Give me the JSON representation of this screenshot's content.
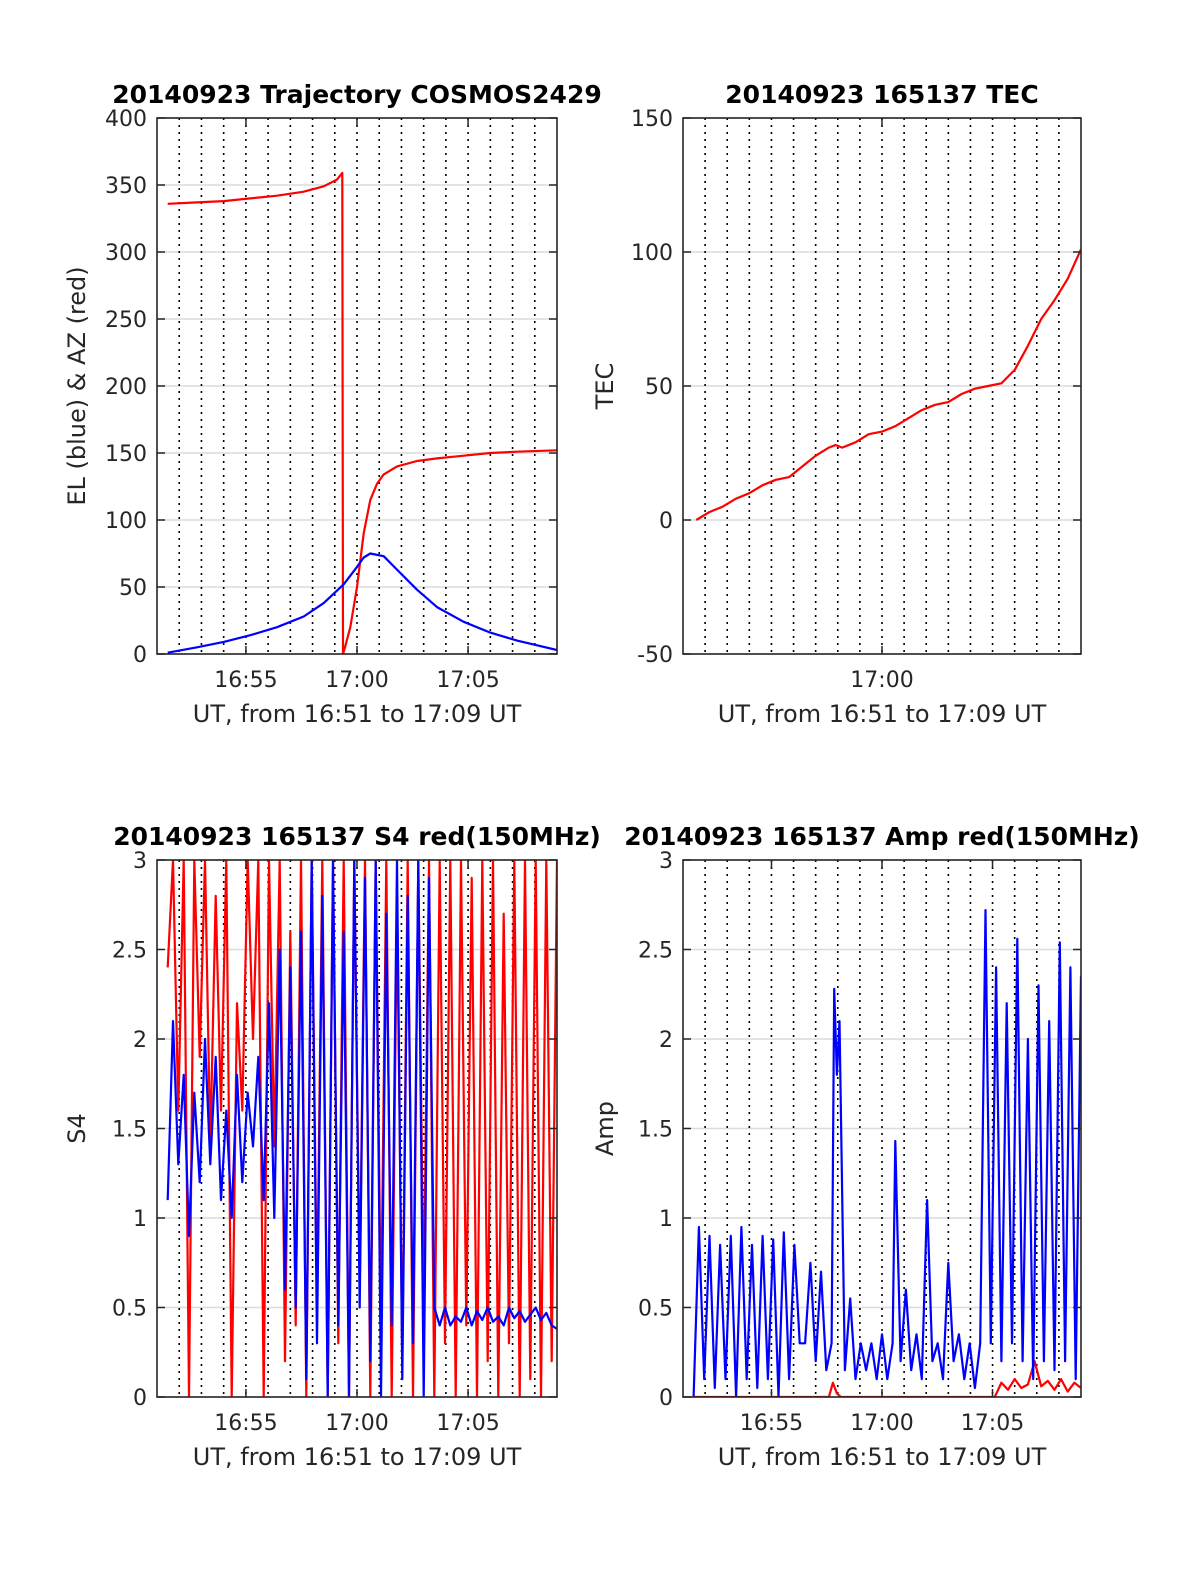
{
  "figure": {
    "background": "#ffffff",
    "grid_color": "#dcdcdc",
    "major_grid_color": "#000000",
    "series_colors": {
      "red": "#ff0000",
      "blue": "#0000ff"
    }
  },
  "chart_data": [
    {
      "id": "trajectory",
      "type": "line",
      "title": "20140923 Trajectory COSMOS2429",
      "xlabel": "UT, from 16:51 to 17:09 UT",
      "ylabel": "EL (blue) & AZ (red)",
      "xlim": [
        16.85,
        17.15
      ],
      "ylim": [
        0,
        400
      ],
      "yticks": [
        0,
        50,
        100,
        150,
        200,
        250,
        300,
        350,
        400
      ],
      "yticklabels": [
        "0",
        "50",
        "100",
        "150",
        "200",
        "250",
        "300",
        "350",
        "400"
      ],
      "xticks": [
        16.9167,
        17.0,
        17.0833
      ],
      "xticklabels": [
        "16:55",
        "17:00",
        "17:05"
      ],
      "minor_grid_step_min": 1,
      "grid": true,
      "series": [
        {
          "color": "#ff0000",
          "x": [
            16.858,
            16.88,
            16.9,
            16.92,
            16.94,
            16.96,
            16.975,
            16.985,
            16.989,
            16.9895,
            16.991,
            16.995,
            17.0,
            17.005,
            17.01,
            17.015,
            17.02,
            17.03,
            17.045,
            17.06,
            17.08,
            17.1,
            17.12,
            17.15
          ],
          "y": [
            336,
            337,
            338,
            340,
            342,
            345,
            349,
            354,
            359,
            0,
            5,
            20,
            50,
            90,
            115,
            127,
            134,
            140,
            144,
            146,
            148,
            150,
            151,
            152
          ]
        },
        {
          "color": "#0000ff",
          "x": [
            16.858,
            16.88,
            16.9,
            16.92,
            16.94,
            16.96,
            16.975,
            16.99,
            17.0,
            17.005,
            17.01,
            17.02,
            17.03,
            17.045,
            17.06,
            17.08,
            17.1,
            17.12,
            17.15
          ],
          "y": [
            1,
            5,
            9,
            14,
            20,
            28,
            38,
            52,
            65,
            72,
            75,
            73,
            63,
            48,
            35,
            24,
            16,
            10,
            3
          ]
        }
      ]
    },
    {
      "id": "tec",
      "type": "line",
      "title": "20140923 165137 TEC",
      "xlabel": "UT, from 16:51 to 17:09 UT",
      "ylabel": "TEC",
      "xlim": [
        16.85,
        17.15
      ],
      "ylim": [
        -50,
        150
      ],
      "yticks": [
        -50,
        0,
        50,
        100,
        150
      ],
      "yticklabels": [
        "-50",
        "0",
        "50",
        "100",
        "150"
      ],
      "xticks": [
        17.0
      ],
      "xticklabels": [
        "17:00"
      ],
      "minor_grid_step_min": 1,
      "grid": true,
      "series": [
        {
          "color": "#ff0000",
          "x": [
            16.86,
            16.87,
            16.88,
            16.89,
            16.9,
            16.91,
            16.92,
            16.93,
            16.94,
            16.95,
            16.96,
            16.965,
            16.97,
            16.98,
            16.99,
            17.0,
            17.01,
            17.02,
            17.03,
            17.04,
            17.05,
            17.06,
            17.07,
            17.08,
            17.09,
            17.1,
            17.11,
            17.12,
            17.13,
            17.14,
            17.15
          ],
          "y": [
            0,
            3,
            5,
            8,
            10,
            13,
            15,
            16,
            20,
            24,
            27,
            28,
            27,
            29,
            32,
            33,
            35,
            38,
            41,
            43,
            44,
            47,
            49,
            50,
            51,
            56,
            65,
            75,
            82,
            90,
            101
          ]
        }
      ]
    },
    {
      "id": "s4",
      "type": "line",
      "title": "20140923 165137 S4 red(150MHz)",
      "xlabel": "UT, from 16:51 to 17:09 UT",
      "ylabel": "S4",
      "xlim": [
        16.85,
        17.15
      ],
      "ylim": [
        0,
        3
      ],
      "yticks": [
        0,
        0.5,
        1,
        1.5,
        2,
        2.5,
        3
      ],
      "yticklabels": [
        "0",
        "0.5",
        "1",
        "1.5",
        "2",
        "2.5",
        "3"
      ],
      "xticks": [
        16.9167,
        17.0,
        17.0833
      ],
      "xticklabels": [
        "16:55",
        "17:00",
        "17:05"
      ],
      "minor_grid_step_min": 1,
      "grid": true,
      "series": [
        {
          "color": "#ff0000",
          "x": [
            16.858,
            16.862,
            16.866,
            16.87,
            16.874,
            16.878,
            16.882,
            16.886,
            16.89,
            16.894,
            16.898,
            16.902,
            16.906,
            16.91,
            16.914,
            16.918,
            16.922,
            16.926,
            16.93,
            16.934,
            16.938,
            16.942,
            16.946,
            16.95,
            16.954,
            16.958,
            16.962,
            16.966,
            16.97,
            16.974,
            16.978,
            16.982,
            16.986,
            16.99,
            16.994,
            16.998,
            17.002,
            17.006,
            17.01,
            17.014,
            17.018,
            17.022,
            17.026,
            17.03,
            17.034,
            17.038,
            17.042,
            17.046,
            17.05,
            17.054,
            17.058,
            17.062,
            17.066,
            17.07,
            17.074,
            17.078,
            17.082,
            17.086,
            17.09,
            17.094,
            17.098,
            17.102,
            17.106,
            17.11,
            17.114,
            17.118,
            17.122,
            17.126,
            17.13,
            17.134,
            17.138,
            17.142,
            17.146,
            17.15
          ],
          "y": [
            2.4,
            3.0,
            1.6,
            3.0,
            0.0,
            3.0,
            1.9,
            3.0,
            1.4,
            2.8,
            1.6,
            3.0,
            0.0,
            2.2,
            1.6,
            3.0,
            2.0,
            3.0,
            0.0,
            3.0,
            1.4,
            3.0,
            0.2,
            2.6,
            0.4,
            3.0,
            0.0,
            3.0,
            0.5,
            3.0,
            0.0,
            3.0,
            0.3,
            3.0,
            0.0,
            3.0,
            0.6,
            3.0,
            0.0,
            3.0,
            0.4,
            3.0,
            0.0,
            2.8,
            0.2,
            3.0,
            0.0,
            3.0,
            0.5,
            3.0,
            0.0,
            3.0,
            0.3,
            3.0,
            0.0,
            3.0,
            0.4,
            2.9,
            0.0,
            3.0,
            0.2,
            3.0,
            0.0,
            2.7,
            0.3,
            3.0,
            0.0,
            3.0,
            0.1,
            3.0,
            0.0,
            3.0,
            0.2,
            3.0
          ]
        },
        {
          "color": "#0000ff",
          "x": [
            16.858,
            16.862,
            16.866,
            16.87,
            16.874,
            16.878,
            16.882,
            16.886,
            16.89,
            16.894,
            16.898,
            16.902,
            16.906,
            16.91,
            16.914,
            16.918,
            16.922,
            16.926,
            16.93,
            16.934,
            16.938,
            16.942,
            16.946,
            16.95,
            16.954,
            16.958,
            16.962,
            16.966,
            16.97,
            16.974,
            16.978,
            16.982,
            16.986,
            16.99,
            16.994,
            16.998,
            17.002,
            17.006,
            17.01,
            17.014,
            17.018,
            17.022,
            17.026,
            17.03,
            17.034,
            17.038,
            17.042,
            17.046,
            17.05,
            17.054,
            17.058,
            17.062,
            17.066,
            17.07,
            17.074,
            17.078,
            17.082,
            17.086,
            17.09,
            17.094,
            17.098,
            17.102,
            17.106,
            17.11,
            17.114,
            17.118,
            17.122,
            17.126,
            17.13,
            17.134,
            17.138,
            17.142,
            17.146,
            17.15
          ],
          "y": [
            1.1,
            2.1,
            1.3,
            1.8,
            0.9,
            1.7,
            1.2,
            2.0,
            1.3,
            1.9,
            1.1,
            1.6,
            1.0,
            1.8,
            1.2,
            1.7,
            1.4,
            1.9,
            1.1,
            2.2,
            1.0,
            2.5,
            0.6,
            2.4,
            0.5,
            2.6,
            0.1,
            3.0,
            0.3,
            2.8,
            0.0,
            3.0,
            0.4,
            2.6,
            0.0,
            3.0,
            0.5,
            2.9,
            0.2,
            3.0,
            0.0,
            2.7,
            0.4,
            3.0,
            0.1,
            2.8,
            0.3,
            3.0,
            0.0,
            2.9,
            0.5,
            0.4,
            0.5,
            0.4,
            0.45,
            0.42,
            0.5,
            0.4,
            0.48,
            0.43,
            0.5,
            0.42,
            0.45,
            0.4,
            0.5,
            0.44,
            0.48,
            0.42,
            0.46,
            0.5,
            0.43,
            0.47,
            0.4,
            0.38
          ]
        }
      ]
    },
    {
      "id": "amp",
      "type": "line",
      "title": "20140923 165137 Amp red(150MHz)",
      "xlabel": "UT, from 16:51 to 17:09 UT",
      "ylabel": "Amp",
      "xlim": [
        16.85,
        17.15
      ],
      "ylim": [
        0,
        3
      ],
      "yticks": [
        0,
        0.5,
        1,
        1.5,
        2,
        2.5,
        3
      ],
      "yticklabels": [
        "0",
        "0.5",
        "1",
        "1.5",
        "2",
        "2.5",
        "3"
      ],
      "xticks": [
        16.9167,
        17.0,
        17.0833
      ],
      "xticklabels": [
        "16:55",
        "17:00",
        "17:05"
      ],
      "minor_grid_step_min": 1,
      "grid": true,
      "series": [
        {
          "color": "#ff0000",
          "x": [
            16.858,
            16.96,
            16.963,
            16.966,
            16.969,
            17.085,
            17.09,
            17.095,
            17.1,
            17.105,
            17.11,
            17.115,
            17.12,
            17.125,
            17.13,
            17.135,
            17.14,
            17.145,
            17.15
          ],
          "y": [
            0.0,
            0.0,
            0.08,
            0.02,
            0.0,
            0.0,
            0.08,
            0.04,
            0.1,
            0.05,
            0.07,
            0.2,
            0.06,
            0.09,
            0.04,
            0.1,
            0.03,
            0.08,
            0.05
          ]
        },
        {
          "color": "#0000ff",
          "x": [
            16.858,
            16.862,
            16.866,
            16.87,
            16.874,
            16.878,
            16.882,
            16.886,
            16.89,
            16.894,
            16.898,
            16.902,
            16.906,
            16.91,
            16.914,
            16.918,
            16.922,
            16.926,
            16.93,
            16.934,
            16.938,
            16.942,
            16.946,
            16.95,
            16.954,
            16.958,
            16.962,
            16.964,
            16.966,
            16.968,
            16.972,
            16.976,
            16.98,
            16.984,
            16.988,
            16.992,
            16.996,
            17.0,
            17.004,
            17.008,
            17.01,
            17.014,
            17.018,
            17.022,
            17.026,
            17.03,
            17.034,
            17.038,
            17.042,
            17.046,
            17.05,
            17.054,
            17.058,
            17.062,
            17.066,
            17.07,
            17.074,
            17.078,
            17.082,
            17.086,
            17.09,
            17.094,
            17.098,
            17.102,
            17.106,
            17.11,
            17.114,
            17.118,
            17.122,
            17.126,
            17.13,
            17.134,
            17.138,
            17.142,
            17.146,
            17.15
          ],
          "y": [
            0.0,
            0.95,
            0.1,
            0.9,
            0.05,
            0.85,
            0.1,
            0.9,
            0.0,
            0.95,
            0.1,
            0.85,
            0.05,
            0.9,
            0.1,
            0.88,
            0.0,
            0.92,
            0.1,
            0.85,
            0.3,
            0.3,
            0.75,
            0.2,
            0.7,
            0.15,
            0.3,
            2.28,
            1.8,
            2.1,
            0.15,
            0.55,
            0.1,
            0.3,
            0.15,
            0.3,
            0.1,
            0.35,
            0.1,
            0.3,
            1.43,
            0.2,
            0.6,
            0.15,
            0.35,
            0.1,
            1.1,
            0.2,
            0.3,
            0.1,
            0.75,
            0.2,
            0.35,
            0.1,
            0.3,
            0.05,
            0.3,
            2.72,
            0.3,
            2.4,
            0.2,
            2.2,
            0.3,
            2.56,
            0.2,
            2.0,
            0.1,
            2.3,
            0.2,
            2.1,
            0.15,
            2.54,
            0.2,
            2.4,
            0.1,
            2.35
          ]
        }
      ]
    }
  ]
}
